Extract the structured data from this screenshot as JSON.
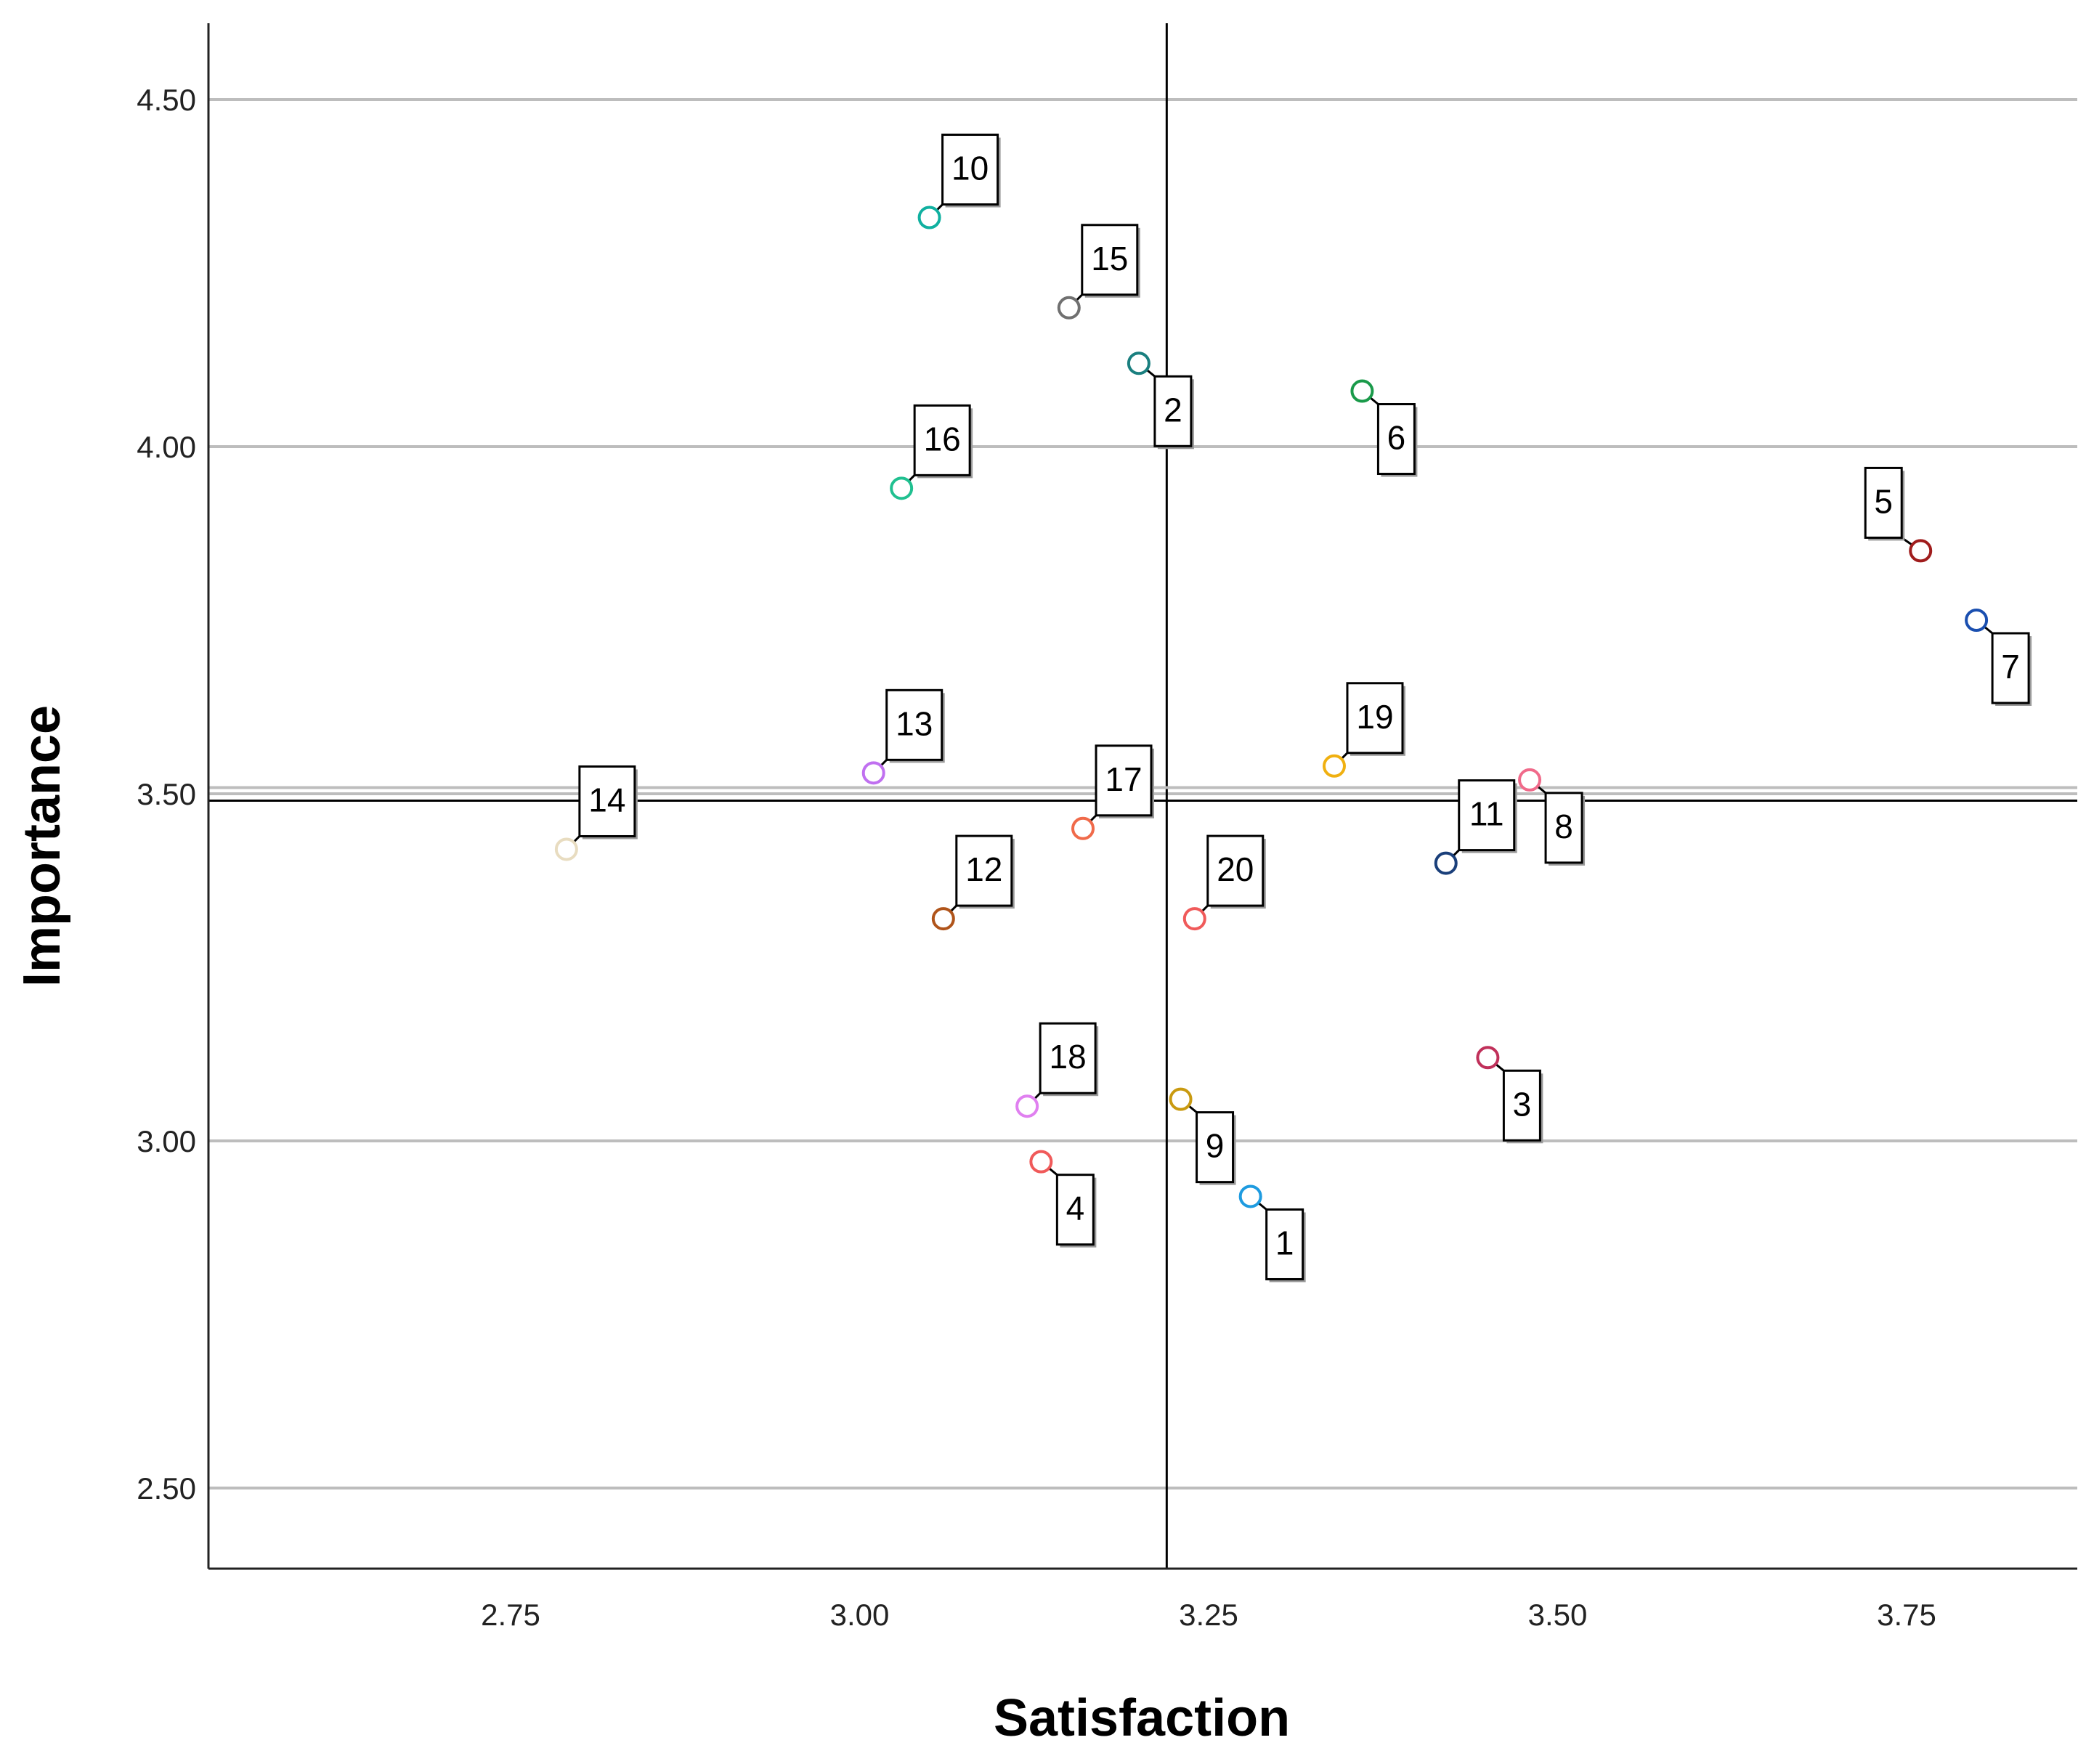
{
  "chart_data": {
    "type": "scatter",
    "title": "",
    "xlabel": "Satisfaction",
    "ylabel": "Importance",
    "xlim": [
      2.53,
      3.87
    ],
    "ylim": [
      2.4,
      4.61
    ],
    "xticks": [
      2.75,
      3.0,
      3.25,
      3.5,
      3.75
    ],
    "yticks": [
      2.5,
      3.0,
      3.5,
      4.0,
      4.5
    ],
    "xtick_labels": [
      "2.75",
      "3.00",
      "3.25",
      "3.50",
      "3.75"
    ],
    "ytick_labels": [
      "2.50",
      "3.00",
      "3.50",
      "4.00",
      "4.50"
    ],
    "grid": "horizontal",
    "reference_lines": {
      "x_mean": 3.22,
      "y_mean": 3.49
    },
    "points": [
      {
        "label": "1",
        "x": 3.28,
        "y": 2.92,
        "color": "#1e9be0",
        "label_pos": "below-right"
      },
      {
        "label": "2",
        "x": 3.2,
        "y": 4.12,
        "color": "#1a7f7f",
        "label_pos": "below-right"
      },
      {
        "label": "3",
        "x": 3.45,
        "y": 3.12,
        "color": "#c0305a",
        "label_pos": "below-right"
      },
      {
        "label": "4",
        "x": 3.13,
        "y": 2.97,
        "color": "#f05a5a",
        "label_pos": "below-right"
      },
      {
        "label": "5",
        "x": 3.76,
        "y": 3.85,
        "color": "#a01c1c",
        "label_pos": "above-left"
      },
      {
        "label": "6",
        "x": 3.36,
        "y": 4.08,
        "color": "#1a9a4a",
        "label_pos": "below-right"
      },
      {
        "label": "7",
        "x": 3.8,
        "y": 3.75,
        "color": "#1a4fb0",
        "label_pos": "below-right"
      },
      {
        "label": "8",
        "x": 3.48,
        "y": 3.52,
        "color": "#f06a8a",
        "label_pos": "below-right"
      },
      {
        "label": "9",
        "x": 3.23,
        "y": 3.06,
        "color": "#c99a10",
        "label_pos": "below-right"
      },
      {
        "label": "10",
        "x": 3.05,
        "y": 4.33,
        "color": "#10b0a0",
        "label_pos": "above-right"
      },
      {
        "label": "11",
        "x": 3.42,
        "y": 3.4,
        "color": "#1a3f7a",
        "label_pos": "above-right"
      },
      {
        "label": "12",
        "x": 3.06,
        "y": 3.32,
        "color": "#b0541a",
        "label_pos": "above-right"
      },
      {
        "label": "13",
        "x": 3.01,
        "y": 3.53,
        "color": "#c070f0",
        "label_pos": "above-right"
      },
      {
        "label": "14",
        "x": 2.79,
        "y": 3.42,
        "color": "#e8dcc0",
        "label_pos": "above-right"
      },
      {
        "label": "15",
        "x": 3.15,
        "y": 4.2,
        "color": "#707070",
        "label_pos": "above-right"
      },
      {
        "label": "16",
        "x": 3.03,
        "y": 3.94,
        "color": "#20c090",
        "label_pos": "above-right"
      },
      {
        "label": "17",
        "x": 3.16,
        "y": 3.45,
        "color": "#f06a4a",
        "label_pos": "above-right"
      },
      {
        "label": "18",
        "x": 3.12,
        "y": 3.05,
        "color": "#e080f0",
        "label_pos": "above-right"
      },
      {
        "label": "19",
        "x": 3.34,
        "y": 3.54,
        "color": "#f0b010",
        "label_pos": "above-right"
      },
      {
        "label": "20",
        "x": 3.24,
        "y": 3.32,
        "color": "#f05a5a",
        "label_pos": "above-right"
      }
    ]
  }
}
